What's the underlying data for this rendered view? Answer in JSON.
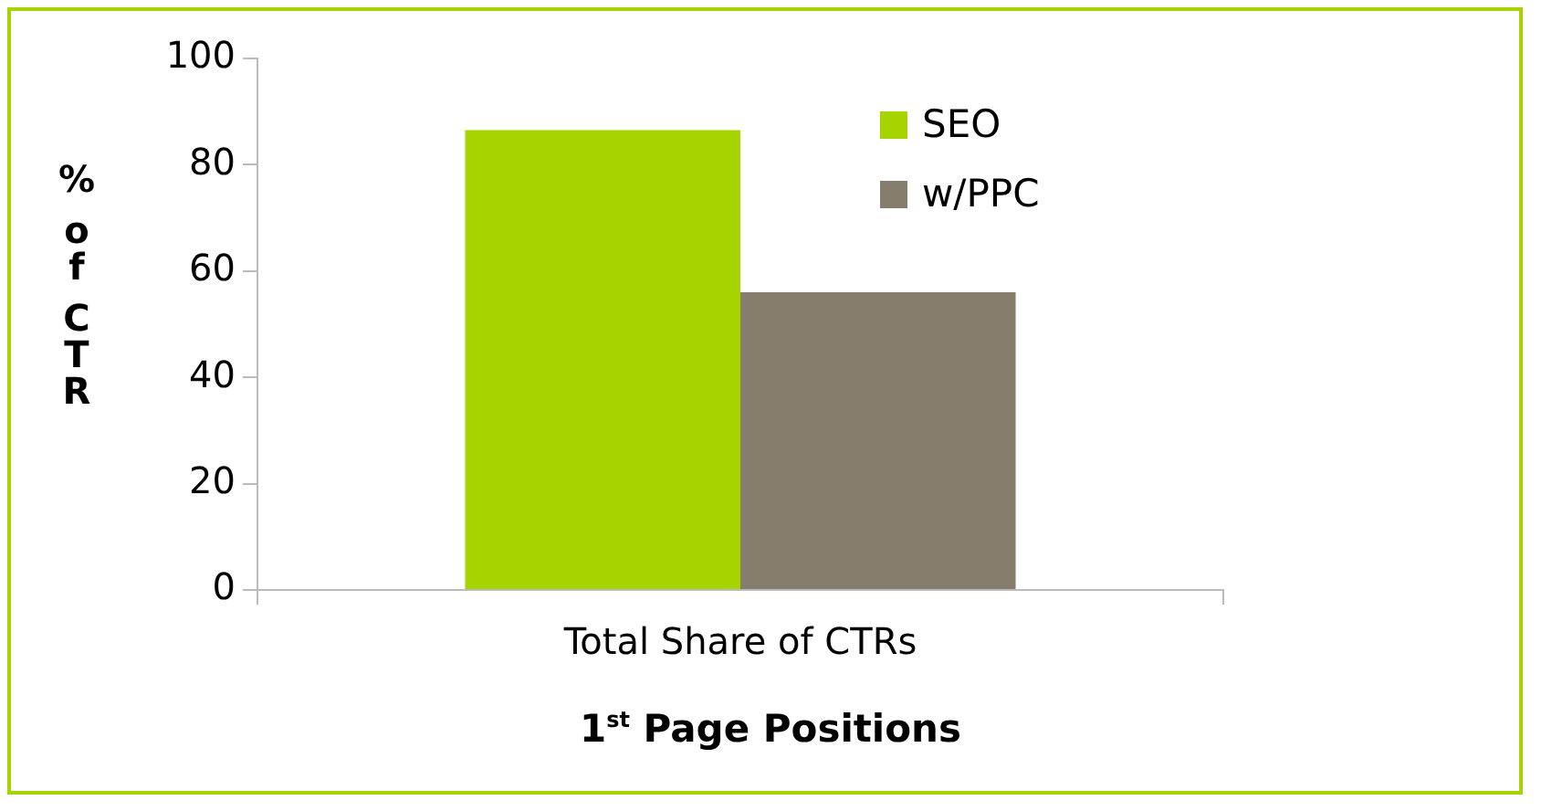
{
  "chart_data": {
    "type": "bar",
    "categories": [
      "Total Share of CTRs"
    ],
    "series": [
      {
        "name": "SEO",
        "color": "#a6d400",
        "values": [
          86.5
        ]
      },
      {
        "name": "w/PPC",
        "color": "#857d6d",
        "values": [
          56
        ]
      }
    ],
    "ylabel": "% of CTR",
    "xlabel": "1$^{st}$ Page Positions",
    "ylim": [
      0,
      100
    ],
    "yticks": [
      0,
      20,
      40,
      60,
      80,
      100
    ],
    "grid": false,
    "legend": "top right"
  }
}
